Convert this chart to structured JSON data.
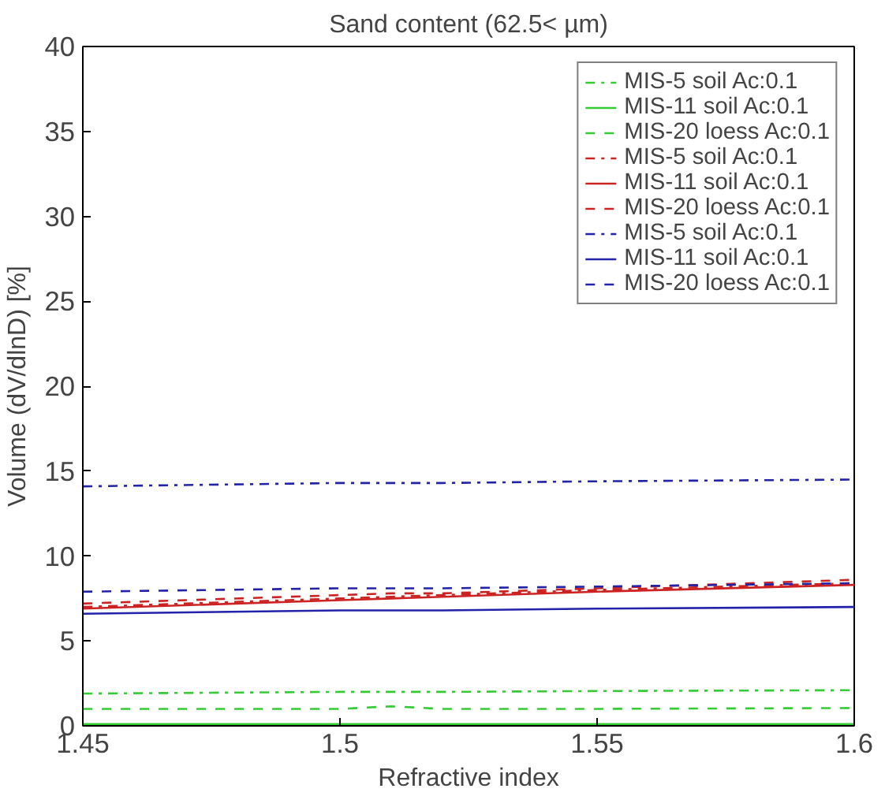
{
  "chart_data": {
    "type": "line",
    "title": "Sand content (62.5< µm)",
    "xlabel": "Refractive index",
    "ylabel": "Volume (dV/dlnD) [%]",
    "x": [
      1.45,
      1.5,
      1.51,
      1.52,
      1.55,
      1.6
    ],
    "xlim": [
      1.45,
      1.6
    ],
    "xticks": [
      1.45,
      1.5,
      1.55,
      1.6
    ],
    "ylim": [
      0,
      40
    ],
    "yticks": [
      0,
      5,
      10,
      15,
      20,
      25,
      30,
      35,
      40
    ],
    "grid": false,
    "legend": "top right",
    "marker": "none",
    "series": [
      {
        "name": "MIS-5 soil Ac:0.1",
        "color": "#33cc33",
        "line_style": "dashdot",
        "values": [
          1.9,
          2.0,
          2.0,
          2.0,
          2.05,
          2.1
        ]
      },
      {
        "name": "MIS-11 soil Ac:0.1",
        "color": "#33cc33",
        "line_style": "solid",
        "values": [
          0.1,
          0.1,
          0.1,
          0.1,
          0.1,
          0.1
        ]
      },
      {
        "name": "MIS-20 loess Ac:0.1",
        "color": "#33cc33",
        "line_style": "dashed",
        "values": [
          1.0,
          1.0,
          1.15,
          1.0,
          1.0,
          1.05
        ]
      },
      {
        "name": "MIS-5 soil Ac:0.1",
        "color": "#cc2222",
        "line_style": "dashdot",
        "values": [
          7.0,
          7.5,
          7.6,
          7.7,
          8.0,
          8.4
        ]
      },
      {
        "name": "MIS-11 soil Ac:0.1",
        "color": "#cc2222",
        "line_style": "solid",
        "values": [
          6.9,
          7.4,
          7.5,
          7.6,
          7.9,
          8.3
        ]
      },
      {
        "name": "MIS-20 loess Ac:0.1",
        "color": "#cc2222",
        "line_style": "dashed",
        "values": [
          7.2,
          7.7,
          7.8,
          7.8,
          8.1,
          8.6
        ]
      },
      {
        "name": "MIS-5 soil Ac:0.1",
        "color": "#2222aa",
        "line_style": "dashdot",
        "values": [
          14.1,
          14.3,
          14.3,
          14.3,
          14.4,
          14.5
        ]
      },
      {
        "name": "MIS-11 soil Ac:0.1",
        "color": "#2222aa",
        "line_style": "solid",
        "values": [
          6.6,
          6.8,
          6.8,
          6.8,
          6.9,
          7.0
        ]
      },
      {
        "name": "MIS-20 loess Ac:0.1",
        "color": "#2222aa",
        "line_style": "dashed",
        "values": [
          7.9,
          8.1,
          8.1,
          8.1,
          8.2,
          8.4
        ]
      }
    ]
  }
}
